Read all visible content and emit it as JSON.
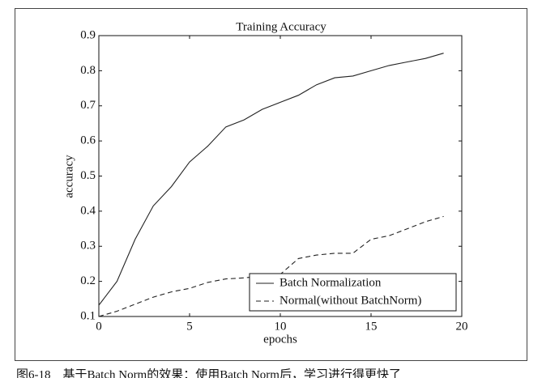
{
  "chart_data": {
    "type": "line",
    "title": "Training Accuracy",
    "xlabel": "epochs",
    "ylabel": "accuracy",
    "x": [
      0,
      1,
      2,
      3,
      4,
      5,
      6,
      7,
      8,
      9,
      10,
      11,
      12,
      13,
      14,
      15,
      16,
      17,
      18,
      19
    ],
    "series": [
      {
        "name": "Batch Normalization",
        "color": "#222222",
        "dash": "none",
        "values": [
          0.132,
          0.2,
          0.32,
          0.415,
          0.47,
          0.54,
          0.585,
          0.64,
          0.66,
          0.69,
          0.71,
          0.73,
          0.76,
          0.78,
          0.785,
          0.8,
          0.815,
          0.825,
          0.835,
          0.85
        ]
      },
      {
        "name": "Normal(without BatchNorm)",
        "color": "#222222",
        "dash": "6,4",
        "values": [
          0.1,
          0.115,
          0.135,
          0.155,
          0.17,
          0.18,
          0.197,
          0.207,
          0.21,
          0.215,
          0.22,
          0.265,
          0.275,
          0.28,
          0.28,
          0.32,
          0.33,
          0.35,
          0.37,
          0.385
        ]
      }
    ],
    "xlim": [
      0,
      20
    ],
    "xticks": [
      0,
      5,
      10,
      15,
      20
    ],
    "ylim": [
      0.1,
      0.9
    ],
    "yticks": [
      0.1,
      0.2,
      0.3,
      0.4,
      0.5,
      0.6,
      0.7,
      0.8,
      0.9
    ],
    "legend": "lower right",
    "caption": "图6-18　基于Batch Norm的效果：使用Batch Norm后，学习进行得更快了"
  }
}
